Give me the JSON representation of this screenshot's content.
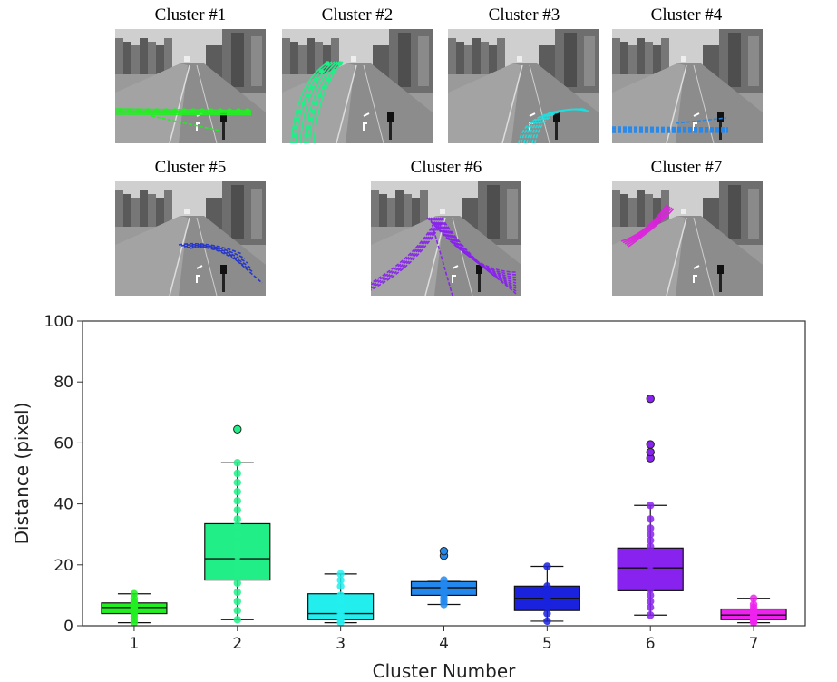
{
  "panels": [
    {
      "title": "Cluster #1",
      "color": "#22ee22",
      "style": "dotted-h",
      "row": 0,
      "col": 0
    },
    {
      "title": "Cluster #2",
      "color": "#22ee88",
      "style": "dotted-curve",
      "row": 0,
      "col": 1
    },
    {
      "title": "Cluster #3",
      "color": "#22dddd",
      "style": "curve-right",
      "row": 0,
      "col": 2
    },
    {
      "title": "Cluster #4",
      "color": "#2288ee",
      "style": "horizontal",
      "row": 0,
      "col": 3
    },
    {
      "title": "Cluster #5",
      "color": "#2233cc",
      "style": "small-right",
      "row": 1,
      "col": 0
    },
    {
      "title": "Cluster #6",
      "color": "#8822ee",
      "style": "fan",
      "row": 1,
      "col": 1
    },
    {
      "title": "Cluster #7",
      "color": "#dd22dd",
      "style": "diagonal",
      "row": 1,
      "col": 2
    }
  ],
  "chart_data": {
    "type": "box",
    "xlabel": "Cluster Number",
    "ylabel": "Distance (pixel)",
    "ylim": [
      0,
      100
    ],
    "yticks": [
      0,
      20,
      40,
      60,
      80,
      100
    ],
    "categories": [
      "1",
      "2",
      "3",
      "4",
      "5",
      "6",
      "7"
    ],
    "boxes": [
      {
        "category": "1",
        "color": "#22ee22",
        "whisker_low": 1,
        "q1": 4,
        "median": 6,
        "q3": 7.5,
        "whisker_high": 10.5,
        "points": [
          1,
          2,
          3,
          4,
          4.5,
          5,
          5.5,
          6,
          6.5,
          7,
          7.5,
          8,
          9,
          10.5
        ],
        "outliers": []
      },
      {
        "category": "2",
        "color": "#22ee88",
        "whisker_low": 2,
        "q1": 15,
        "median": 22,
        "q3": 33.5,
        "whisker_high": 53.5,
        "points": [
          2,
          5,
          8,
          11,
          14,
          17,
          19,
          21,
          23,
          25,
          27,
          30,
          33,
          35,
          38,
          41,
          44,
          47,
          50,
          53.5
        ],
        "outliers": [
          64.5
        ]
      },
      {
        "category": "3",
        "color": "#22eeee",
        "whisker_low": 1,
        "q1": 2,
        "median": 4,
        "q3": 10.5,
        "whisker_high": 17,
        "points": [
          1,
          2,
          3,
          4,
          5,
          8,
          10,
          13,
          15,
          17
        ],
        "outliers": []
      },
      {
        "category": "4",
        "color": "#2288ee",
        "whisker_low": 7,
        "q1": 10,
        "median": 12.5,
        "q3": 14.5,
        "whisker_high": 15,
        "points": [
          7,
          8,
          9,
          10,
          11,
          12,
          13,
          14,
          15
        ],
        "outliers": [
          23,
          24.5
        ]
      },
      {
        "category": "5",
        "color": "#1a22dd",
        "whisker_low": 1.5,
        "q1": 5,
        "median": 9,
        "q3": 13,
        "whisker_high": 19.5,
        "points": [
          1.5,
          4,
          6,
          8,
          9,
          10,
          11,
          12,
          13,
          19.5
        ],
        "outliers": []
      },
      {
        "category": "6",
        "color": "#8822ee",
        "whisker_low": 3.5,
        "q1": 11.5,
        "median": 19,
        "q3": 25.5,
        "whisker_high": 39.5,
        "points": [
          3.5,
          6,
          8,
          10,
          12,
          14,
          16,
          18,
          20,
          22,
          24,
          26,
          28,
          30,
          32,
          35,
          39.5
        ],
        "outliers": [
          55,
          57,
          59.5,
          74.5
        ]
      },
      {
        "category": "7",
        "color": "#ee22ee",
        "whisker_low": 1,
        "q1": 2,
        "median": 3.5,
        "q3": 5.5,
        "whisker_high": 9,
        "points": [
          1,
          1.5,
          2,
          3,
          3.5,
          4,
          5,
          6,
          7,
          9
        ],
        "outliers": []
      }
    ]
  }
}
